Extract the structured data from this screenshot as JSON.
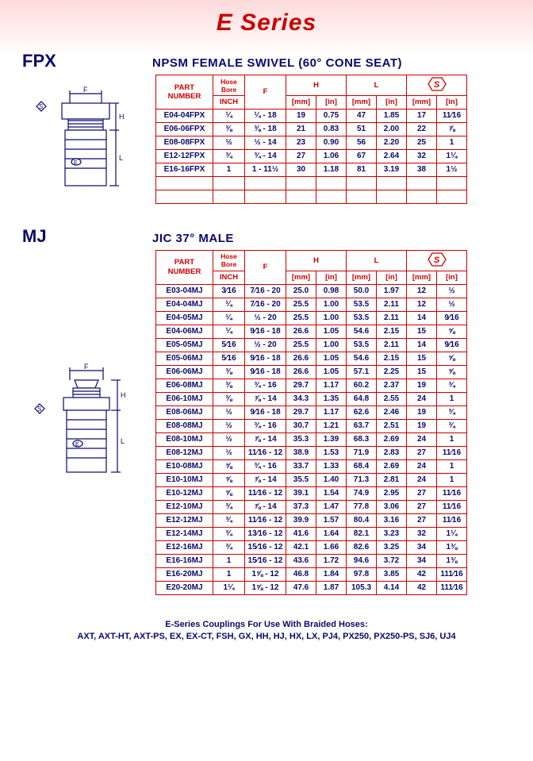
{
  "series_title": "E Series",
  "footer_line1": "E-Series Couplings For Use With Braided Hoses:",
  "footer_line2": "AXT, AXT-HT, AXT-PS, EX, EX-CT, FSH, GX, HH, HJ, HX, LX, PJ4, PX250, PX250-PS, SJ6, UJ4",
  "colors": {
    "brand_red": "#cc0000",
    "ink_blue": "#0a0a6a",
    "grid": "#cc0000",
    "bg_top": "#fddada"
  },
  "headers": {
    "part_number": "PART NUMBER",
    "hose_bore": "Hose Bore",
    "inch_label": "INCH",
    "f": "F",
    "h": "H",
    "l": "L",
    "mm": "[mm]",
    "in": "[in]"
  },
  "col_widths": {
    "pn": 72,
    "hose": 40,
    "f": 52,
    "mm": 38,
    "in": 38
  },
  "fpx": {
    "key": "FPX",
    "title": "NPSM FEMALE SWIVEL (60° CONE SEAT)",
    "rows": [
      {
        "pn": "E04-04FPX",
        "hose": "¼",
        "f": "¼ - 18",
        "hmm": "19",
        "hin": "0.75",
        "lmm": "47",
        "lin": "1.85",
        "smm": "17",
        "sin": "11⁄16"
      },
      {
        "pn": "E06-06FPX",
        "hose": "⅜",
        "f": "⅜ - 18",
        "hmm": "21",
        "hin": "0.83",
        "lmm": "51",
        "lin": "2.00",
        "smm": "22",
        "sin": "⅞"
      },
      {
        "pn": "E08-08FPX",
        "hose": "½",
        "f": "½ - 14",
        "hmm": "23",
        "hin": "0.90",
        "lmm": "56",
        "lin": "2.20",
        "smm": "25",
        "sin": "1"
      },
      {
        "pn": "E12-12FPX",
        "hose": "¾",
        "f": "¾ - 14",
        "hmm": "27",
        "hin": "1.06",
        "lmm": "67",
        "lin": "2.64",
        "smm": "32",
        "sin": "1¼"
      },
      {
        "pn": "E16-16FPX",
        "hose": "1",
        "f": "1 - 11½",
        "hmm": "30",
        "hin": "1.18",
        "lmm": "81",
        "lin": "3.19",
        "smm": "38",
        "sin": "1½"
      }
    ],
    "blank_rows": 2
  },
  "mj": {
    "key": "MJ",
    "title": "JIC 37° MALE",
    "rows": [
      {
        "pn": "E03-04MJ",
        "hose": "3⁄16",
        "f": "7⁄16 - 20",
        "hmm": "25.0",
        "hin": "0.98",
        "lmm": "50.0",
        "lin": "1.97",
        "smm": "12",
        "sin": "½"
      },
      {
        "pn": "E04-04MJ",
        "hose": "¼",
        "f": "7⁄16 - 20",
        "hmm": "25.5",
        "hin": "1.00",
        "lmm": "53.5",
        "lin": "2.11",
        "smm": "12",
        "sin": "½"
      },
      {
        "pn": "E04-05MJ",
        "hose": "¼",
        "f": "½ - 20",
        "hmm": "25.5",
        "hin": "1.00",
        "lmm": "53.5",
        "lin": "2.11",
        "smm": "14",
        "sin": "9⁄16"
      },
      {
        "pn": "E04-06MJ",
        "hose": "¼",
        "f": "9⁄16 - 18",
        "hmm": "26.6",
        "hin": "1.05",
        "lmm": "54.6",
        "lin": "2.15",
        "smm": "15",
        "sin": "⅝"
      },
      {
        "pn": "E05-05MJ",
        "hose": "5⁄16",
        "f": "½ - 20",
        "hmm": "25.5",
        "hin": "1.00",
        "lmm": "53.5",
        "lin": "2.11",
        "smm": "14",
        "sin": "9⁄16"
      },
      {
        "pn": "E05-06MJ",
        "hose": "5⁄16",
        "f": "9⁄16 - 18",
        "hmm": "26.6",
        "hin": "1.05",
        "lmm": "54.6",
        "lin": "2.15",
        "smm": "15",
        "sin": "⅝"
      },
      {
        "pn": "E06-06MJ",
        "hose": "⅜",
        "f": "9⁄16 - 18",
        "hmm": "26.6",
        "hin": "1.05",
        "lmm": "57.1",
        "lin": "2.25",
        "smm": "15",
        "sin": "⅝"
      },
      {
        "pn": "E06-08MJ",
        "hose": "⅜",
        "f": "¾ - 16",
        "hmm": "29.7",
        "hin": "1.17",
        "lmm": "60.2",
        "lin": "2.37",
        "smm": "19",
        "sin": "¾"
      },
      {
        "pn": "E06-10MJ",
        "hose": "⅜",
        "f": "⅞ - 14",
        "hmm": "34.3",
        "hin": "1.35",
        "lmm": "64.8",
        "lin": "2.55",
        "smm": "24",
        "sin": "1"
      },
      {
        "pn": "E08-06MJ",
        "hose": "½",
        "f": "9⁄16 - 18",
        "hmm": "29.7",
        "hin": "1.17",
        "lmm": "62.6",
        "lin": "2.46",
        "smm": "19",
        "sin": "¾"
      },
      {
        "pn": "E08-08MJ",
        "hose": "½",
        "f": "¾ - 16",
        "hmm": "30.7",
        "hin": "1.21",
        "lmm": "63.7",
        "lin": "2.51",
        "smm": "19",
        "sin": "¾"
      },
      {
        "pn": "E08-10MJ",
        "hose": "½",
        "f": "⅞ - 14",
        "hmm": "35.3",
        "hin": "1.39",
        "lmm": "68.3",
        "lin": "2.69",
        "smm": "24",
        "sin": "1"
      },
      {
        "pn": "E08-12MJ",
        "hose": "½",
        "f": "11⁄16 - 12",
        "hmm": "38.9",
        "hin": "1.53",
        "lmm": "71.9",
        "lin": "2.83",
        "smm": "27",
        "sin": "11⁄16"
      },
      {
        "pn": "E10-08MJ",
        "hose": "⅝",
        "f": "¾ - 16",
        "hmm": "33.7",
        "hin": "1.33",
        "lmm": "68.4",
        "lin": "2.69",
        "smm": "24",
        "sin": "1"
      },
      {
        "pn": "E10-10MJ",
        "hose": "⅝",
        "f": "⅞ - 14",
        "hmm": "35.5",
        "hin": "1.40",
        "lmm": "71.3",
        "lin": "2.81",
        "smm": "24",
        "sin": "1"
      },
      {
        "pn": "E10-12MJ",
        "hose": "⅝",
        "f": "11⁄16 - 12",
        "hmm": "39.1",
        "hin": "1.54",
        "lmm": "74.9",
        "lin": "2.95",
        "smm": "27",
        "sin": "11⁄16"
      },
      {
        "pn": "E12-10MJ",
        "hose": "¾",
        "f": "⅞ - 14",
        "hmm": "37.3",
        "hin": "1.47",
        "lmm": "77.8",
        "lin": "3.06",
        "smm": "27",
        "sin": "11⁄16"
      },
      {
        "pn": "E12-12MJ",
        "hose": "¾",
        "f": "11⁄16 - 12",
        "hmm": "39.9",
        "hin": "1.57",
        "lmm": "80.4",
        "lin": "3.16",
        "smm": "27",
        "sin": "11⁄16"
      },
      {
        "pn": "E12-14MJ",
        "hose": "¾",
        "f": "13⁄16 - 12",
        "hmm": "41.6",
        "hin": "1.64",
        "lmm": "82.1",
        "lin": "3.23",
        "smm": "32",
        "sin": "1¼"
      },
      {
        "pn": "E12-16MJ",
        "hose": "¾",
        "f": "15⁄16 - 12",
        "hmm": "42.1",
        "hin": "1.66",
        "lmm": "82.6",
        "lin": "3.25",
        "smm": "34",
        "sin": "1⅜"
      },
      {
        "pn": "E16-16MJ",
        "hose": "1",
        "f": "15⁄16 - 12",
        "hmm": "43.6",
        "hin": "1.72",
        "lmm": "94.6",
        "lin": "3.72",
        "smm": "34",
        "sin": "1⅜"
      },
      {
        "pn": "E16-20MJ",
        "hose": "1",
        "f": "1⅝ - 12",
        "hmm": "46.8",
        "hin": "1.84",
        "lmm": "97.8",
        "lin": "3.85",
        "smm": "42",
        "sin": "111⁄16"
      },
      {
        "pn": "E20-20MJ",
        "hose": "1¼",
        "f": "1⅝ - 12",
        "hmm": "47.6",
        "hin": "1.87",
        "lmm": "105.3",
        "lin": "4.14",
        "smm": "42",
        "sin": "111⁄16"
      }
    ],
    "blank_rows": 0
  }
}
